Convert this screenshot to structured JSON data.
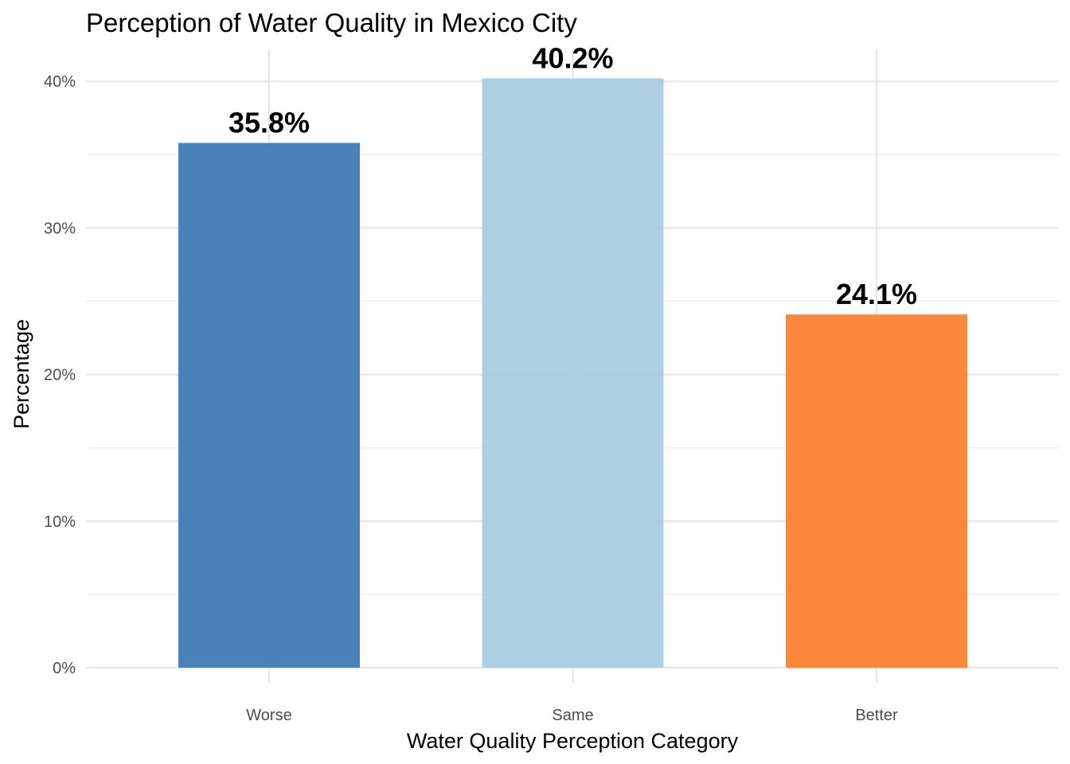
{
  "chart_data": {
    "type": "bar",
    "title": "Perception of Water Quality in Mexico City",
    "xlabel": "Water Quality Perception Category",
    "ylabel": "Percentage",
    "categories": [
      "Worse",
      "Same",
      "Better"
    ],
    "values": [
      35.8,
      40.2,
      24.1
    ],
    "value_labels": [
      "35.8%",
      "40.2%",
      "24.1%"
    ],
    "colors": [
      "#3a78b3",
      "#a6cbe0",
      "#fd7f2b"
    ],
    "ylim": [
      0,
      40.2
    ],
    "yticks": [
      0,
      10,
      20,
      30,
      40
    ],
    "ytick_labels": [
      "0%",
      "10%",
      "20%",
      "30%",
      "40%"
    ],
    "grid": true,
    "legend": "none"
  }
}
